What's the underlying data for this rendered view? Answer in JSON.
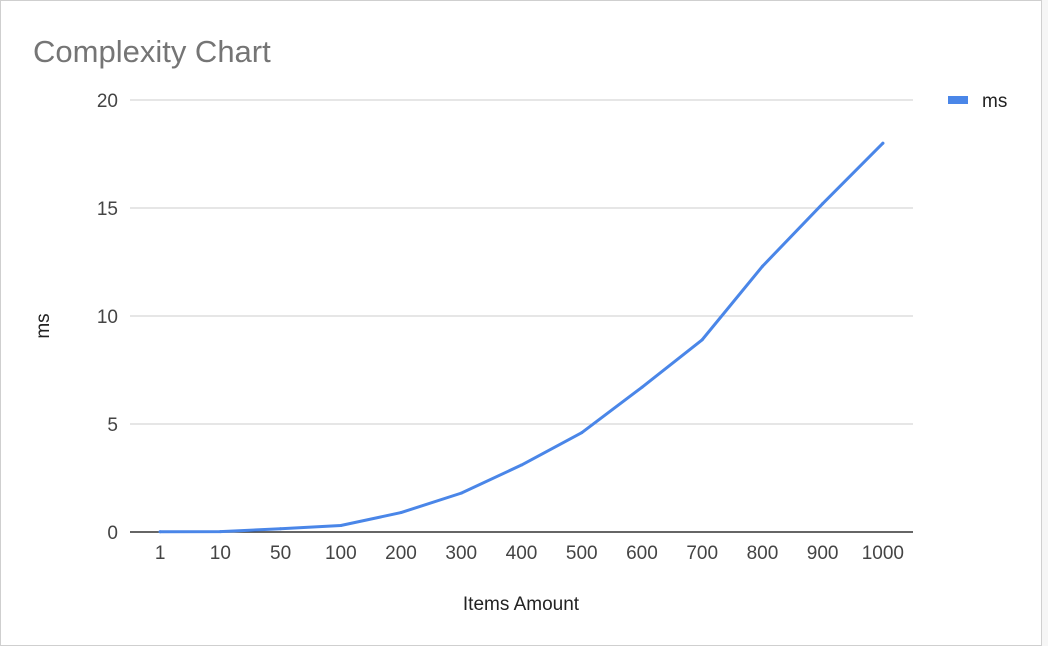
{
  "chart_data": {
    "type": "line",
    "title": "Complexity Chart",
    "xlabel": "Items Amount",
    "ylabel": "ms",
    "categories": [
      "1",
      "10",
      "50",
      "100",
      "200",
      "300",
      "400",
      "500",
      "600",
      "700",
      "800",
      "900",
      "1000"
    ],
    "series": [
      {
        "name": "ms",
        "color": "#4a86e8",
        "values": [
          0.01,
          0.02,
          0.15,
          0.3,
          0.9,
          1.8,
          3.1,
          4.6,
          6.7,
          8.9,
          12.3,
          15.2,
          18.0
        ]
      }
    ],
    "ylim": [
      0,
      20
    ],
    "yticks": [
      0,
      5,
      10,
      15,
      20
    ],
    "grid": true,
    "legend_position": "top-right"
  }
}
